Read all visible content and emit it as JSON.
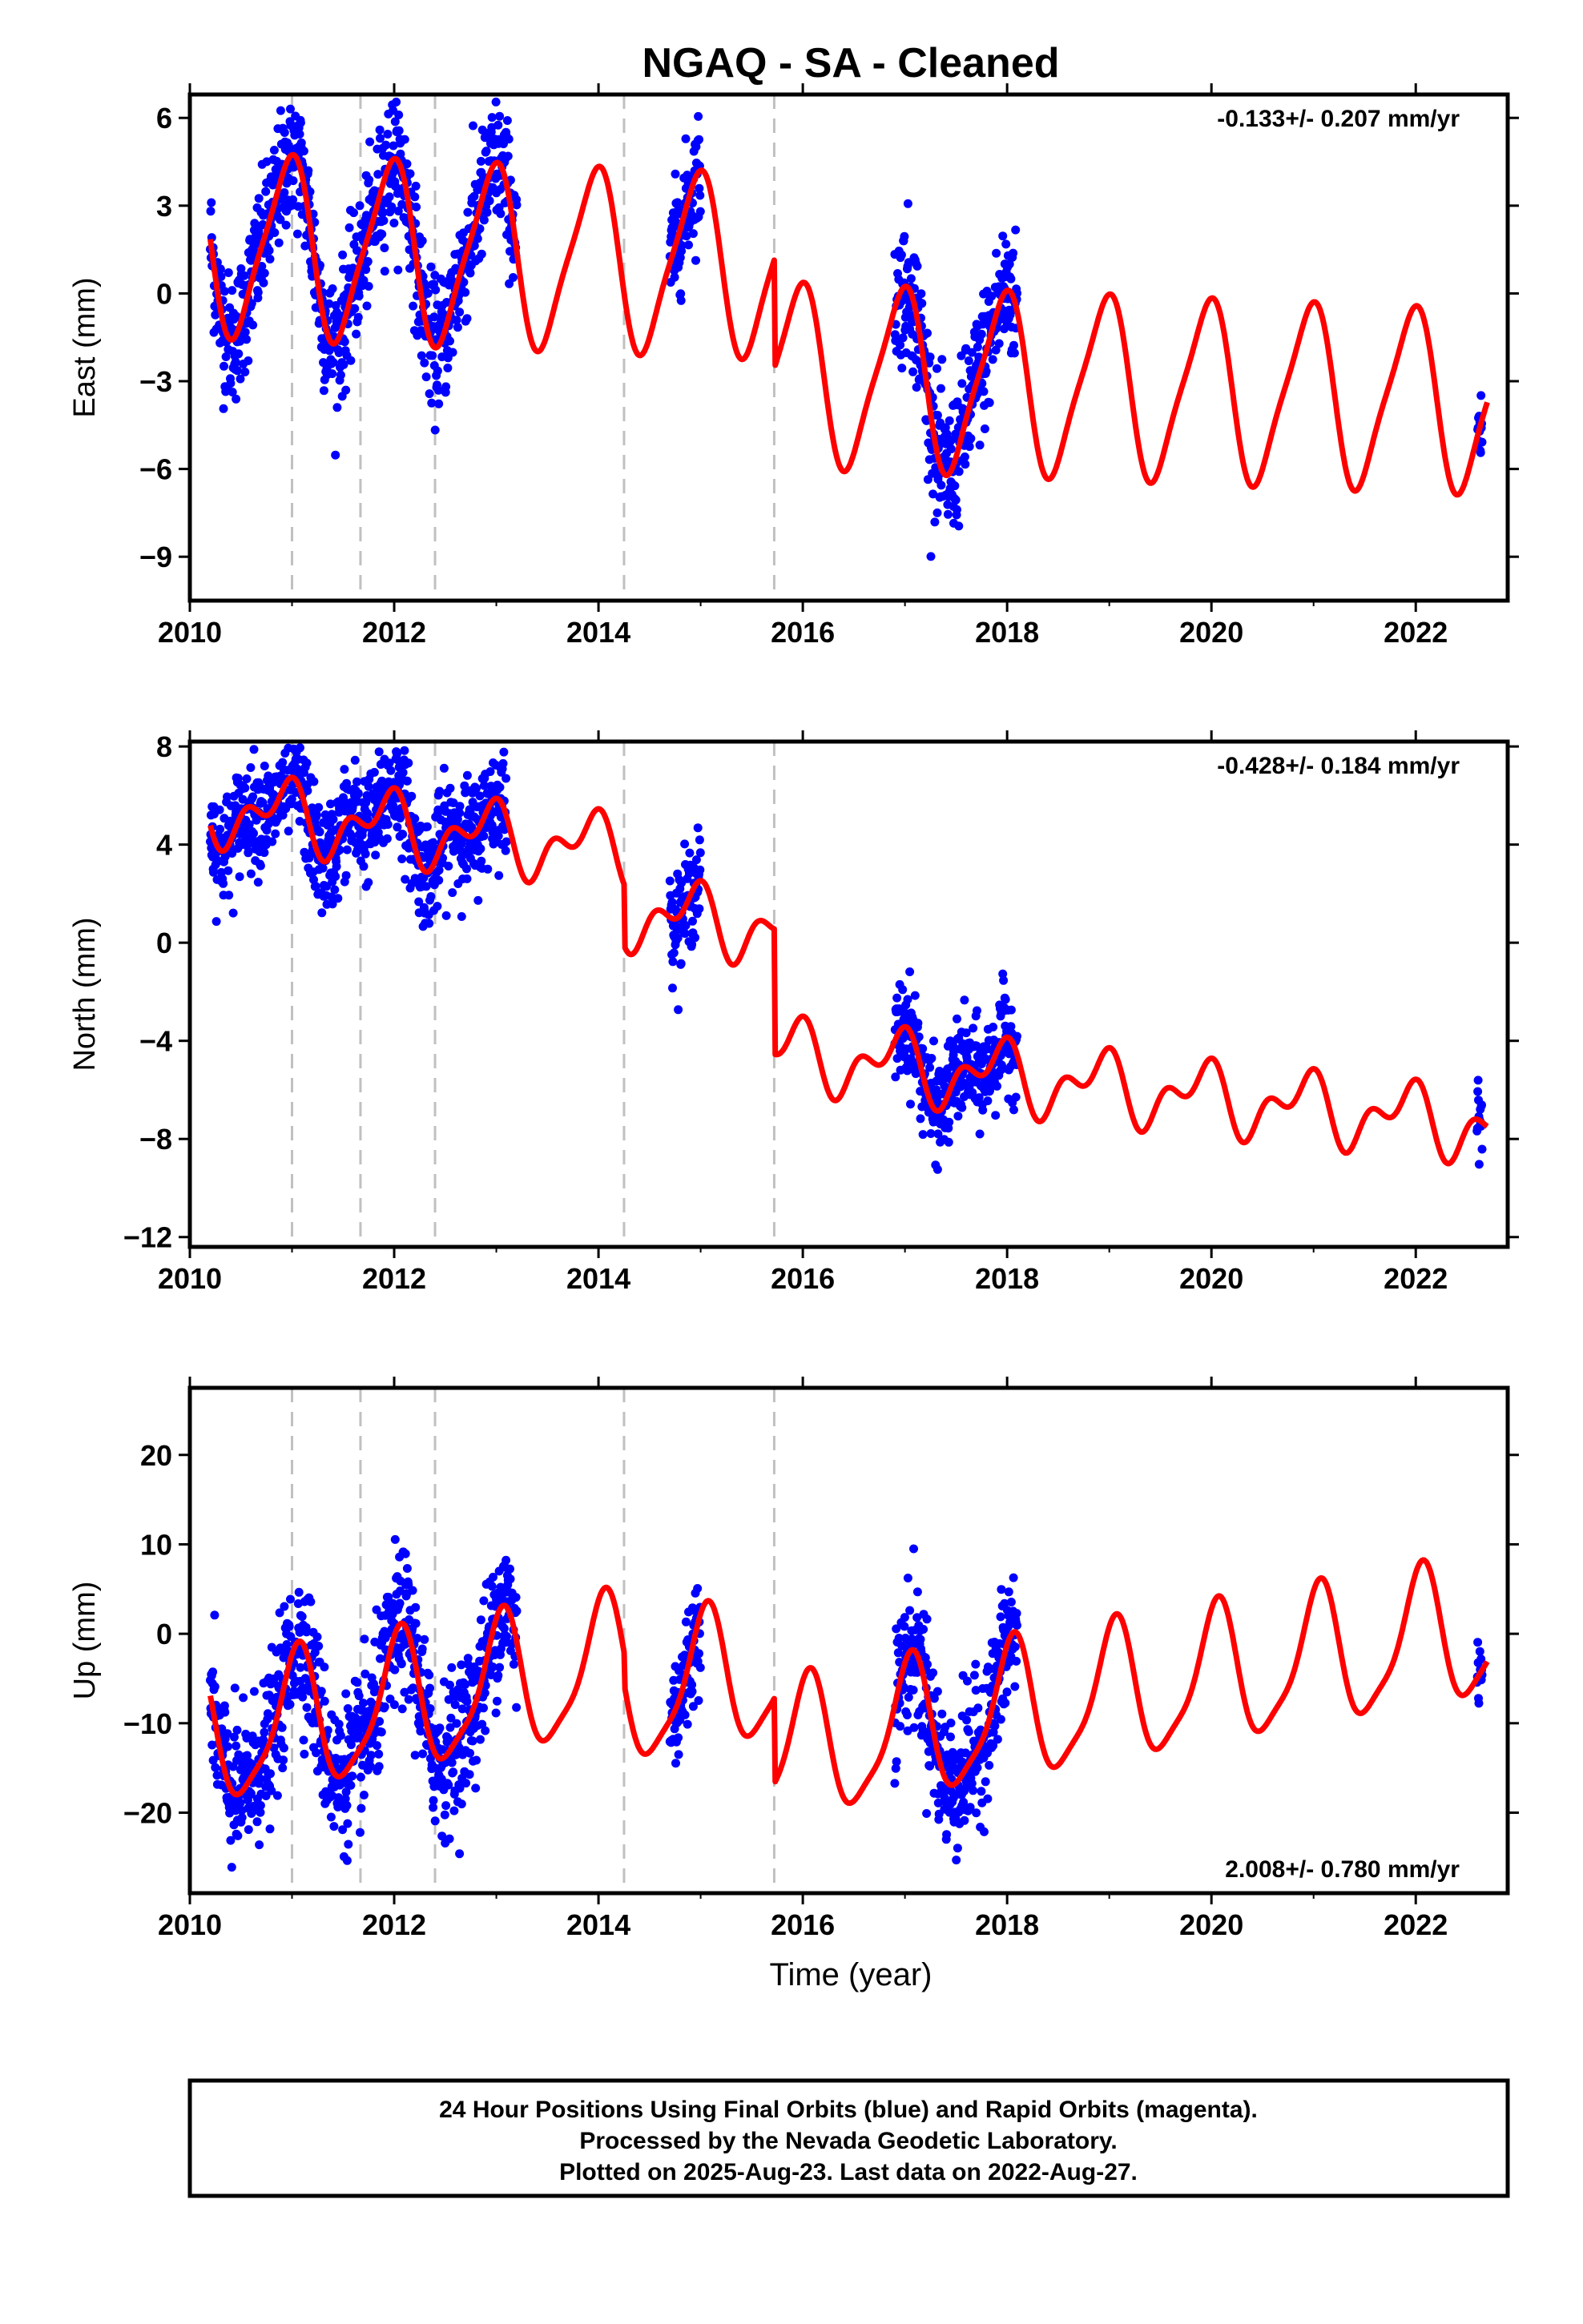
{
  "title": "NGAQ  - SA - Cleaned",
  "xlabel": "Time (year)",
  "footer": {
    "line1": "24 Hour Positions Using Final Orbits (blue) and Rapid Orbits (magenta).",
    "line2": "Processed by the Nevada Geodetic Laboratory.",
    "line3": "Plotted on 2025-Aug-23. Last data on 2022-Aug-27."
  },
  "colors": {
    "points": "#0000ff",
    "model": "#ff0000",
    "offsets": "#c0c0c0"
  },
  "chart_data": [
    {
      "type": "scatter",
      "panel": "east",
      "ylabel": "East (mm)",
      "rate_label": "-0.133+/- 0.207 mm/yr",
      "rate_position": "top-right",
      "xlim": [
        2010,
        2022.9
      ],
      "ylim": [
        -10.5,
        6.8
      ],
      "x_ticks": [
        2010,
        2012,
        2014,
        2016,
        2018,
        2020,
        2022
      ],
      "y_ticks": [
        6,
        3,
        0,
        -3,
        -6,
        -9
      ],
      "y_tick_labels": [
        "6",
        "3",
        "0",
        "−3",
        "−6",
        "−9"
      ],
      "offset_lines": [
        2011.0,
        2011.67,
        2012.4,
        2014.25,
        2015.72
      ],
      "model": {
        "annual_amp": 3.0,
        "annual_phase": 1.85,
        "semi_amp": 0.6,
        "semi_phase": 0.5,
        "trend_mm_per_yr": -0.133,
        "segment_offsets": [
          {
            "from": 2010.0,
            "to": 2015.72,
            "value": 0.9
          },
          {
            "from": 2015.72,
            "to": 2022.9,
            "value": -2.8
          }
        ]
      },
      "observations": [
        {
          "from": 2010.2,
          "to": 2013.2,
          "noise": 1.1
        },
        {
          "from": 2014.7,
          "to": 2015.0,
          "noise": 1.0
        },
        {
          "from": 2016.9,
          "to": 2018.1,
          "noise": 1.2
        },
        {
          "from": 2022.6,
          "to": 2022.65,
          "noise": 0.6
        }
      ]
    },
    {
      "type": "scatter",
      "panel": "north",
      "ylabel": "North (mm)",
      "rate_label": "-0.428+/- 0.184 mm/yr",
      "rate_position": "top-right",
      "xlim": [
        2010,
        2022.9
      ],
      "ylim": [
        -12.4,
        8.2
      ],
      "x_ticks": [
        2010,
        2012,
        2014,
        2016,
        2018,
        2020,
        2022
      ],
      "y_ticks": [
        8,
        4,
        0,
        -4,
        -8,
        -12
      ],
      "y_tick_labels": [
        "8",
        "4",
        "0",
        "−4",
        "−8",
        "−12"
      ],
      "offset_lines": [
        2011.0,
        2011.67,
        2012.4,
        2014.25,
        2015.72
      ],
      "model": {
        "annual_amp": 1.1,
        "annual_phase": 2.2,
        "semi_amp": 0.8,
        "semi_phase": 1.1,
        "trend_mm_per_yr": -0.428,
        "segment_offsets": [
          {
            "from": 2010.0,
            "to": 2014.25,
            "value": 3.0
          },
          {
            "from": 2014.25,
            "to": 2015.72,
            "value": 0.5
          },
          {
            "from": 2015.72,
            "to": 2022.9,
            "value": -4.6
          }
        ]
      },
      "observations": [
        {
          "from": 2010.2,
          "to": 2013.1,
          "noise": 1.1
        },
        {
          "from": 2014.7,
          "to": 2015.0,
          "noise": 1.0
        },
        {
          "from": 2016.9,
          "to": 2018.1,
          "noise": 1.0
        },
        {
          "from": 2022.6,
          "to": 2022.65,
          "noise": 0.7
        }
      ]
    },
    {
      "type": "scatter",
      "panel": "up",
      "ylabel": "Up (mm)",
      "rate_label": "2.008+/- 0.780 mm/yr",
      "rate_position": "bottom-right",
      "xlim": [
        2010,
        2022.9
      ],
      "ylim": [
        -29,
        27.5
      ],
      "x_ticks": [
        2010,
        2012,
        2014,
        2016,
        2018,
        2020,
        2022
      ],
      "y_ticks": [
        20,
        10,
        0,
        -10,
        -20
      ],
      "y_tick_labels": [
        "20",
        "10",
        "0",
        "−10",
        "−20"
      ],
      "offset_lines": [
        2011.0,
        2011.67,
        2012.4,
        2014.25,
        2015.72
      ],
      "model": {
        "annual_amp": 7.5,
        "annual_phase": 1.3,
        "semi_amp": 1.8,
        "semi_phase": 0.3,
        "trend_mm_per_yr": 2.008,
        "segment_offsets": [
          {
            "from": 2010.0,
            "to": 2014.25,
            "value": 0.0
          },
          {
            "from": 2014.25,
            "to": 2015.72,
            "value": -3.5
          },
          {
            "from": 2015.72,
            "to": 2022.9,
            "value": -13.0
          }
        ]
      },
      "observations": [
        {
          "from": 2010.2,
          "to": 2013.2,
          "noise": 4.0
        },
        {
          "from": 2014.7,
          "to": 2015.0,
          "noise": 3.5
        },
        {
          "from": 2016.9,
          "to": 2018.1,
          "noise": 4.0
        },
        {
          "from": 2022.6,
          "to": 2022.65,
          "noise": 3.0
        }
      ]
    }
  ]
}
